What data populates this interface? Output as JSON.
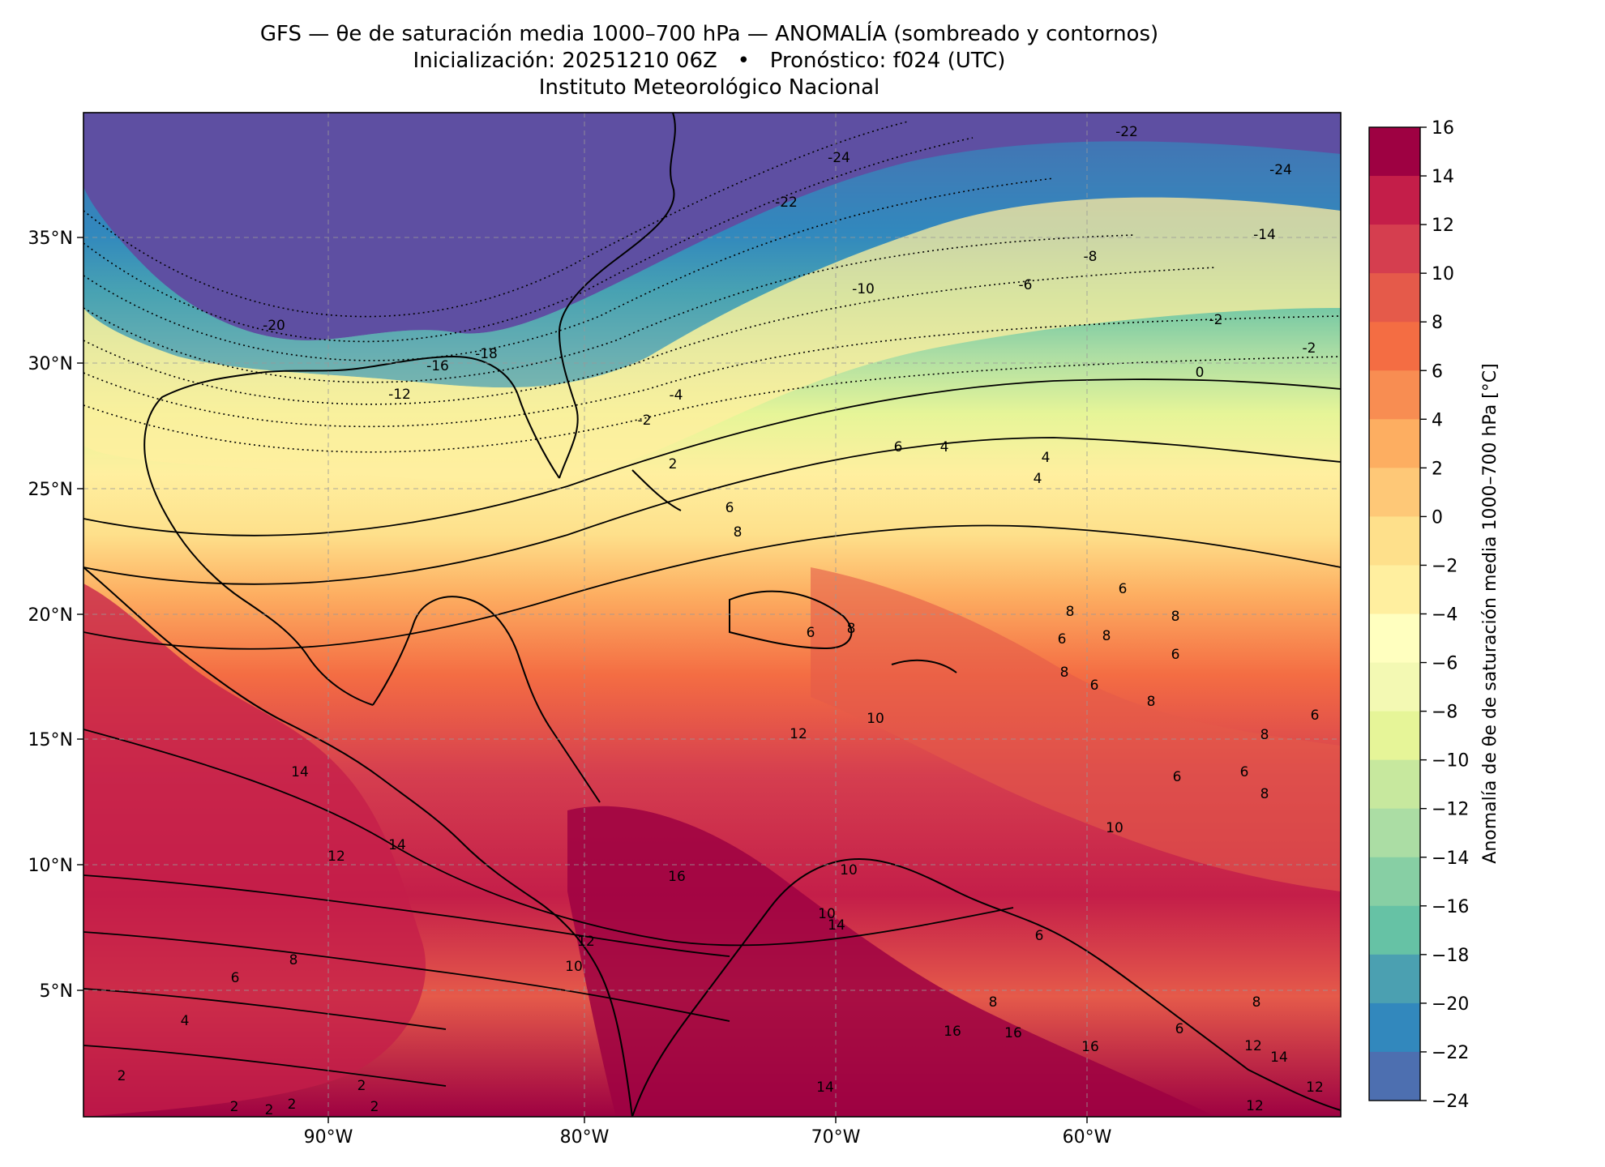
{
  "title": {
    "line1": "GFS — θe de saturación media 1000–700 hPa — ANOMALÍA (sombreado y contornos)",
    "line2": "Inicialización: 20251210 06Z   •   Pronóstico: f024 (UTC)",
    "line3": "Instituto Meteorológico Nacional"
  },
  "map": {
    "lon_range": [
      -100,
      -50
    ],
    "lat_range": [
      0,
      40
    ],
    "lon_ticks": [
      "90°W",
      "80°W",
      "70°W",
      "60°W"
    ],
    "lat_ticks": [
      "5°N",
      "10°N",
      "15°N",
      "20°N",
      "25°N",
      "30°N",
      "35°N"
    ],
    "gridlines": true
  },
  "colorbar": {
    "label": "Anomalía de θe de saturación media 1000–700 hPa [°C]",
    "ticks": [
      "16",
      "14",
      "12",
      "10",
      "8",
      "6",
      "4",
      "2",
      "0",
      "−2",
      "−4",
      "−6",
      "−8",
      "−10",
      "−12",
      "−14",
      "−16",
      "−18",
      "−20",
      "−22",
      "−24"
    ],
    "colors": [
      "#9e0142",
      "#c41e49",
      "#d53e4f",
      "#e55a4a",
      "#f46d43",
      "#f88d52",
      "#fdae61",
      "#fec877",
      "#fee08b",
      "#ffef9f",
      "#ffffbf",
      "#f3f9b3",
      "#e6f598",
      "#c7e89e",
      "#abdda4",
      "#87cfa4",
      "#66c2a5",
      "#4ba0b1",
      "#3288bd",
      "#4d6fb0",
      "#5e4fa2"
    ]
  },
  "contour_labels": [
    "-22",
    "-24",
    "-24",
    "-22",
    "-14",
    "-8",
    "-6",
    "-10",
    "-20",
    "-18",
    "-16",
    "-12",
    "-4",
    "-2",
    "0",
    "-2",
    "-2",
    "2",
    "4",
    "4",
    "4",
    "6",
    "6",
    "8",
    "6",
    "8",
    "8",
    "8",
    "6",
    "6",
    "8",
    "6",
    "8",
    "6",
    "8",
    "8",
    "6",
    "6",
    "6",
    "8",
    "10",
    "12",
    "10",
    "14",
    "12",
    "14",
    "16",
    "10",
    "12",
    "10",
    "8",
    "6",
    "4",
    "2",
    "2",
    "2",
    "2",
    "14",
    "16",
    "16",
    "16",
    "14",
    "12",
    "12",
    "12",
    "14",
    "8",
    "10",
    "6",
    "8",
    "6",
    "2",
    "2"
  ]
}
